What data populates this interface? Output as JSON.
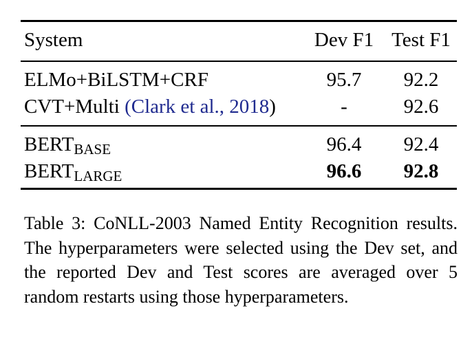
{
  "table": {
    "headers": {
      "system": "System",
      "dev": "Dev F1",
      "test": "Test F1"
    },
    "rows": [
      {
        "system": "ELMo+BiLSTM+CRF",
        "dev": "95.7",
        "test": "92.2"
      },
      {
        "system": "CVT+Multi ",
        "citation_open": "(",
        "citation": "Clark et al., 2018",
        "citation_close": ")",
        "dev": "-",
        "test": "92.6"
      },
      {
        "system": "BERT",
        "subscript": "BASE",
        "dev": "96.4",
        "test": "92.4"
      },
      {
        "system": "BERT",
        "subscript": "LARGE",
        "dev": "96.6",
        "test": "92.8",
        "bold": true
      }
    ]
  },
  "caption": "Table 3: CoNLL-2003 Named Entity Recognition re­sults.  The hyperparameters were selected using the Dev set, and the reported Dev and Test scores are aver­aged over 5 random restarts using those hyperparame­ters.",
  "colors": {
    "citation": "#1f2a8f",
    "text": "#000000"
  }
}
